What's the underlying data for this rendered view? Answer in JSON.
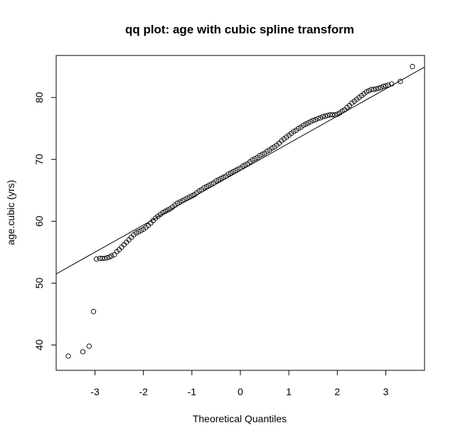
{
  "chart_data": {
    "type": "scatter",
    "subtype": "qq-plot",
    "title": "qq plot: age with cubic spline transform",
    "xlabel": "Theoretical Quantiles",
    "ylabel": "age.cubic (yrs)",
    "xlim": [
      -3.8,
      3.8
    ],
    "ylim": [
      35.9,
      86.8
    ],
    "x_ticks": [
      -3,
      -2,
      -1,
      0,
      1,
      2,
      3
    ],
    "x_tick_labels": [
      "-3",
      "-2",
      "-1",
      "0",
      "1",
      "2",
      "3"
    ],
    "y_ticks": [
      40,
      50,
      60,
      70,
      80
    ],
    "y_tick_labels": [
      "40",
      "50",
      "60",
      "70",
      "80"
    ],
    "grid": false,
    "marker": "open-circle",
    "reference_line": {
      "intercept": 68.2,
      "slope": 4.4
    },
    "points": {
      "x": [
        -3.55,
        -3.25,
        -3.12,
        -3.03,
        -2.97,
        -2.9,
        -2.85,
        -2.8,
        -2.75,
        -2.7,
        -2.66,
        -2.6,
        -2.55,
        -2.5,
        -2.45,
        -2.4,
        -2.35,
        -2.3,
        -2.25,
        -2.2,
        -2.15,
        -2.1,
        -2.05,
        -2.0,
        -1.95,
        -1.9,
        -1.85,
        -1.8,
        -1.75,
        -1.7,
        -1.65,
        -1.6,
        -1.55,
        -1.5,
        -1.45,
        -1.4,
        -1.35,
        -1.3,
        -1.25,
        -1.2,
        -1.15,
        -1.1,
        -1.05,
        -1.0,
        -0.95,
        -0.9,
        -0.85,
        -0.8,
        -0.75,
        -0.7,
        -0.65,
        -0.6,
        -0.55,
        -0.5,
        -0.45,
        -0.4,
        -0.35,
        -0.3,
        -0.25,
        -0.2,
        -0.15,
        -0.1,
        -0.05,
        0.0,
        0.05,
        0.1,
        0.15,
        0.2,
        0.25,
        0.3,
        0.35,
        0.4,
        0.45,
        0.5,
        0.55,
        0.6,
        0.65,
        0.7,
        0.75,
        0.8,
        0.85,
        0.9,
        0.95,
        1.0,
        1.05,
        1.1,
        1.15,
        1.2,
        1.25,
        1.3,
        1.35,
        1.4,
        1.45,
        1.5,
        1.55,
        1.6,
        1.65,
        1.7,
        1.75,
        1.8,
        1.85,
        1.9,
        1.95,
        2.0,
        2.05,
        2.1,
        2.15,
        2.2,
        2.25,
        2.3,
        2.35,
        2.4,
        2.45,
        2.5,
        2.55,
        2.6,
        2.65,
        2.7,
        2.75,
        2.8,
        2.85,
        2.9,
        2.95,
        3.0,
        3.05,
        3.12,
        3.3,
        3.55
      ],
      "y": [
        38.2,
        38.9,
        39.8,
        45.4,
        53.9,
        54.0,
        54.0,
        54.0,
        54.1,
        54.2,
        54.4,
        54.6,
        55.1,
        55.4,
        55.8,
        56.2,
        56.6,
        57.0,
        57.4,
        57.8,
        58.1,
        58.3,
        58.5,
        58.7,
        59.0,
        59.3,
        59.7,
        60.1,
        60.5,
        60.8,
        61.1,
        61.4,
        61.6,
        61.8,
        62.0,
        62.3,
        62.6,
        62.9,
        63.1,
        63.3,
        63.5,
        63.7,
        63.9,
        64.1,
        64.3,
        64.6,
        64.9,
        65.1,
        65.4,
        65.6,
        65.8,
        66.0,
        66.2,
        66.5,
        66.7,
        66.9,
        67.1,
        67.3,
        67.6,
        67.8,
        68.0,
        68.2,
        68.4,
        68.6,
        68.9,
        69.1,
        69.3,
        69.6,
        69.9,
        70.1,
        70.3,
        70.6,
        70.8,
        71.0,
        71.3,
        71.5,
        71.8,
        72.0,
        72.3,
        72.6,
        73.0,
        73.3,
        73.6,
        73.9,
        74.2,
        74.5,
        74.7,
        75.0,
        75.2,
        75.5,
        75.7,
        75.9,
        76.1,
        76.3,
        76.4,
        76.6,
        76.7,
        76.9,
        77.0,
        77.1,
        77.2,
        77.2,
        77.2,
        77.3,
        77.5,
        77.8,
        78.0,
        78.4,
        78.7,
        79.1,
        79.4,
        79.7,
        80.0,
        80.3,
        80.6,
        80.9,
        81.1,
        81.3,
        81.3,
        81.4,
        81.5,
        81.6,
        81.8,
        81.9,
        82.0,
        82.2,
        82.6,
        85.0
      ]
    }
  }
}
